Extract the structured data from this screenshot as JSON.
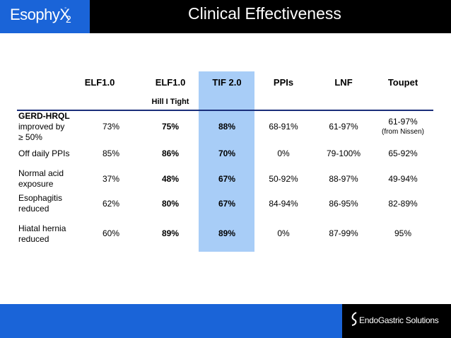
{
  "header": {
    "logo_text": "EsophyX",
    "logo_sup": "-",
    "logo_sub": "2",
    "title": "Clinical Effectiveness"
  },
  "table": {
    "columns": [
      "ELF1.0",
      "ELF1.0",
      "TIF 2.0",
      "PPIs",
      "LNF",
      "Toupet"
    ],
    "subheader": "Hill I Tight",
    "highlight_color": "#a8cdf7",
    "rows": [
      {
        "label_bold": "GERD-HRQL",
        "label_rest_1": "improved by",
        "label_rest_2": "≥ 50%",
        "values": [
          "73%",
          "75%",
          "88%",
          "68-91%",
          "61-97%",
          "61-97%"
        ],
        "note": "(from Nissen)"
      },
      {
        "label_1": "Off daily PPIs",
        "values": [
          "85%",
          "86%",
          "70%",
          "0%",
          "79-100%",
          "65-92%"
        ]
      },
      {
        "label_1": "Normal acid",
        "label_2": "exposure",
        "values": [
          "37%",
          "48%",
          "67%",
          "50-92%",
          "88-97%",
          "49-94%"
        ]
      },
      {
        "label_1": "Esophagitis",
        "label_2": "reduced",
        "values": [
          "62%",
          "80%",
          "67%",
          "84-94%",
          "86-95%",
          "82-89%"
        ]
      },
      {
        "label_1": "Hiatal hernia",
        "label_2": "reduced",
        "values": [
          "60%",
          "89%",
          "89%",
          "0%",
          "87-99%",
          "95%"
        ]
      }
    ]
  },
  "footer": {
    "brand": "EndoGastric Solutions",
    "brand_icon": "endogastric-logo-icon"
  }
}
